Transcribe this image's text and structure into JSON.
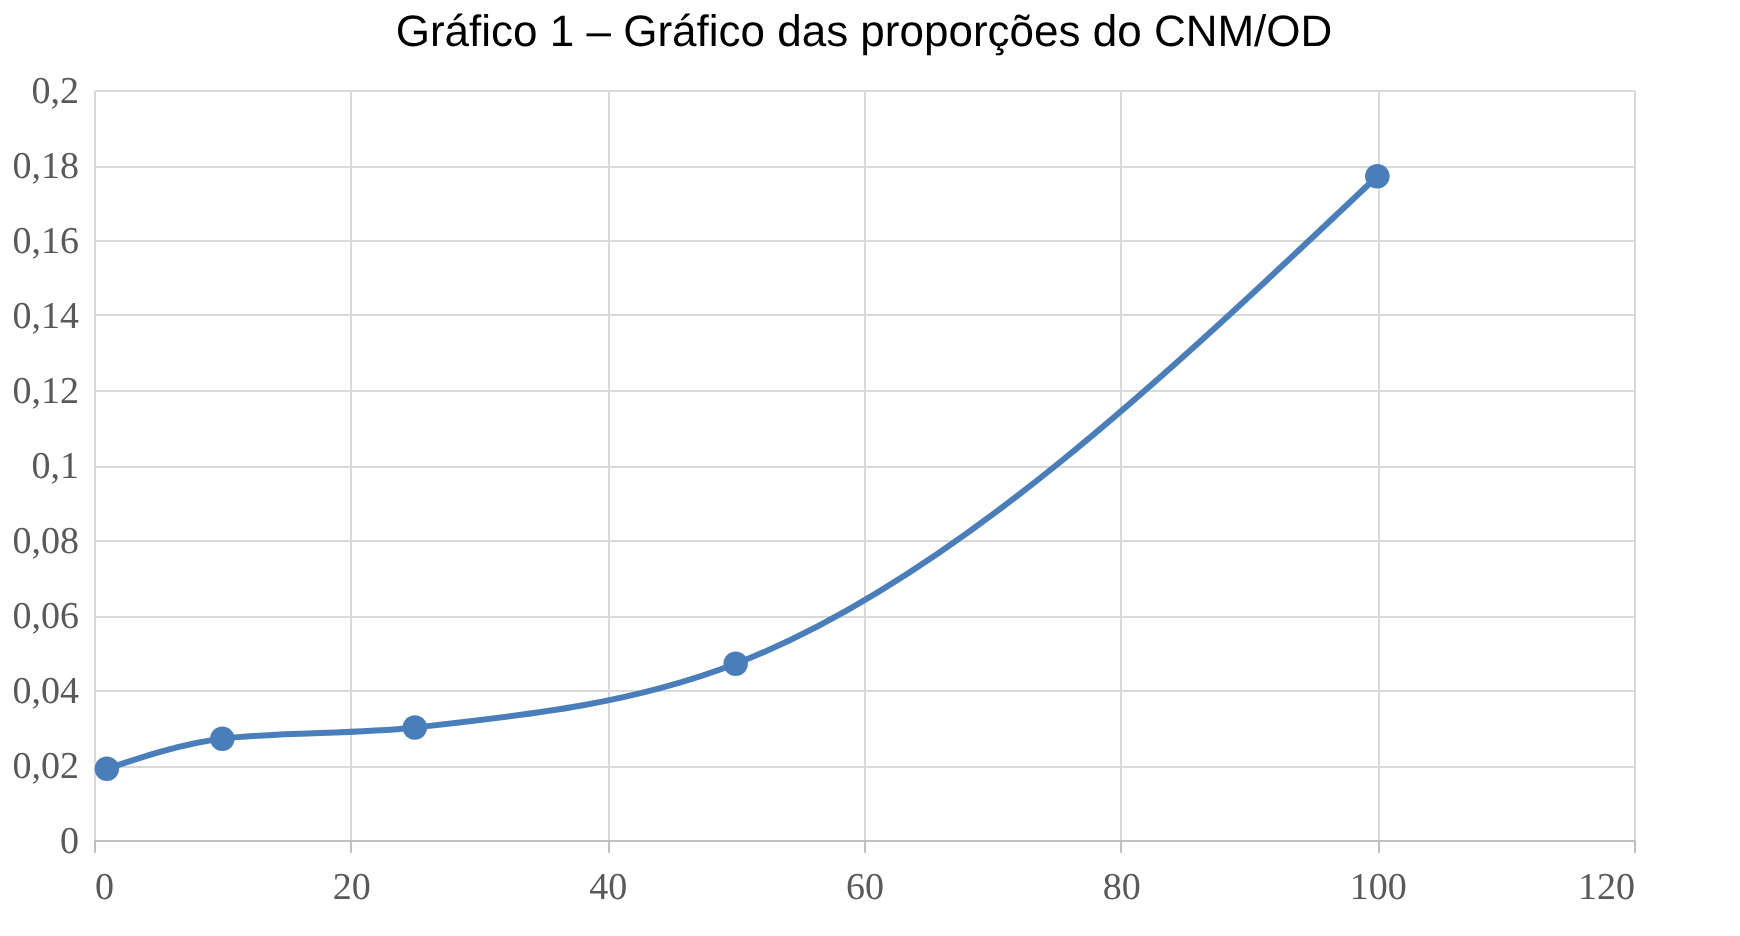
{
  "chart_data": {
    "type": "line",
    "title": "Gráfico 1 – Gráfico das proporções do CNM/OD",
    "x": [
      1,
      10,
      25,
      50,
      100
    ],
    "series": [
      {
        "color": "#4a7ebb",
        "values": [
          0.019,
          0.027,
          0.03,
          0.047,
          0.177
        ]
      }
    ],
    "xlim": [
      0,
      120
    ],
    "xticks": [
      0,
      20,
      40,
      60,
      80,
      100,
      120
    ],
    "ylim": [
      0,
      0.2
    ],
    "yticks": [
      {
        "value": 0,
        "label": "0"
      },
      {
        "value": 0.02,
        "label": "0,02"
      },
      {
        "value": 0.04,
        "label": "0,04"
      },
      {
        "value": 0.06,
        "label": "0,06"
      },
      {
        "value": 0.08,
        "label": "0,08"
      },
      {
        "value": 0.1,
        "label": "0,1"
      },
      {
        "value": 0.12,
        "label": "0,12"
      },
      {
        "value": 0.14,
        "label": "0,14"
      },
      {
        "value": 0.16,
        "label": "0,16"
      },
      {
        "value": 0.18,
        "label": "0,18"
      },
      {
        "value": 0.2,
        "label": "0,2"
      }
    ],
    "grid": true,
    "marker": "circle"
  }
}
